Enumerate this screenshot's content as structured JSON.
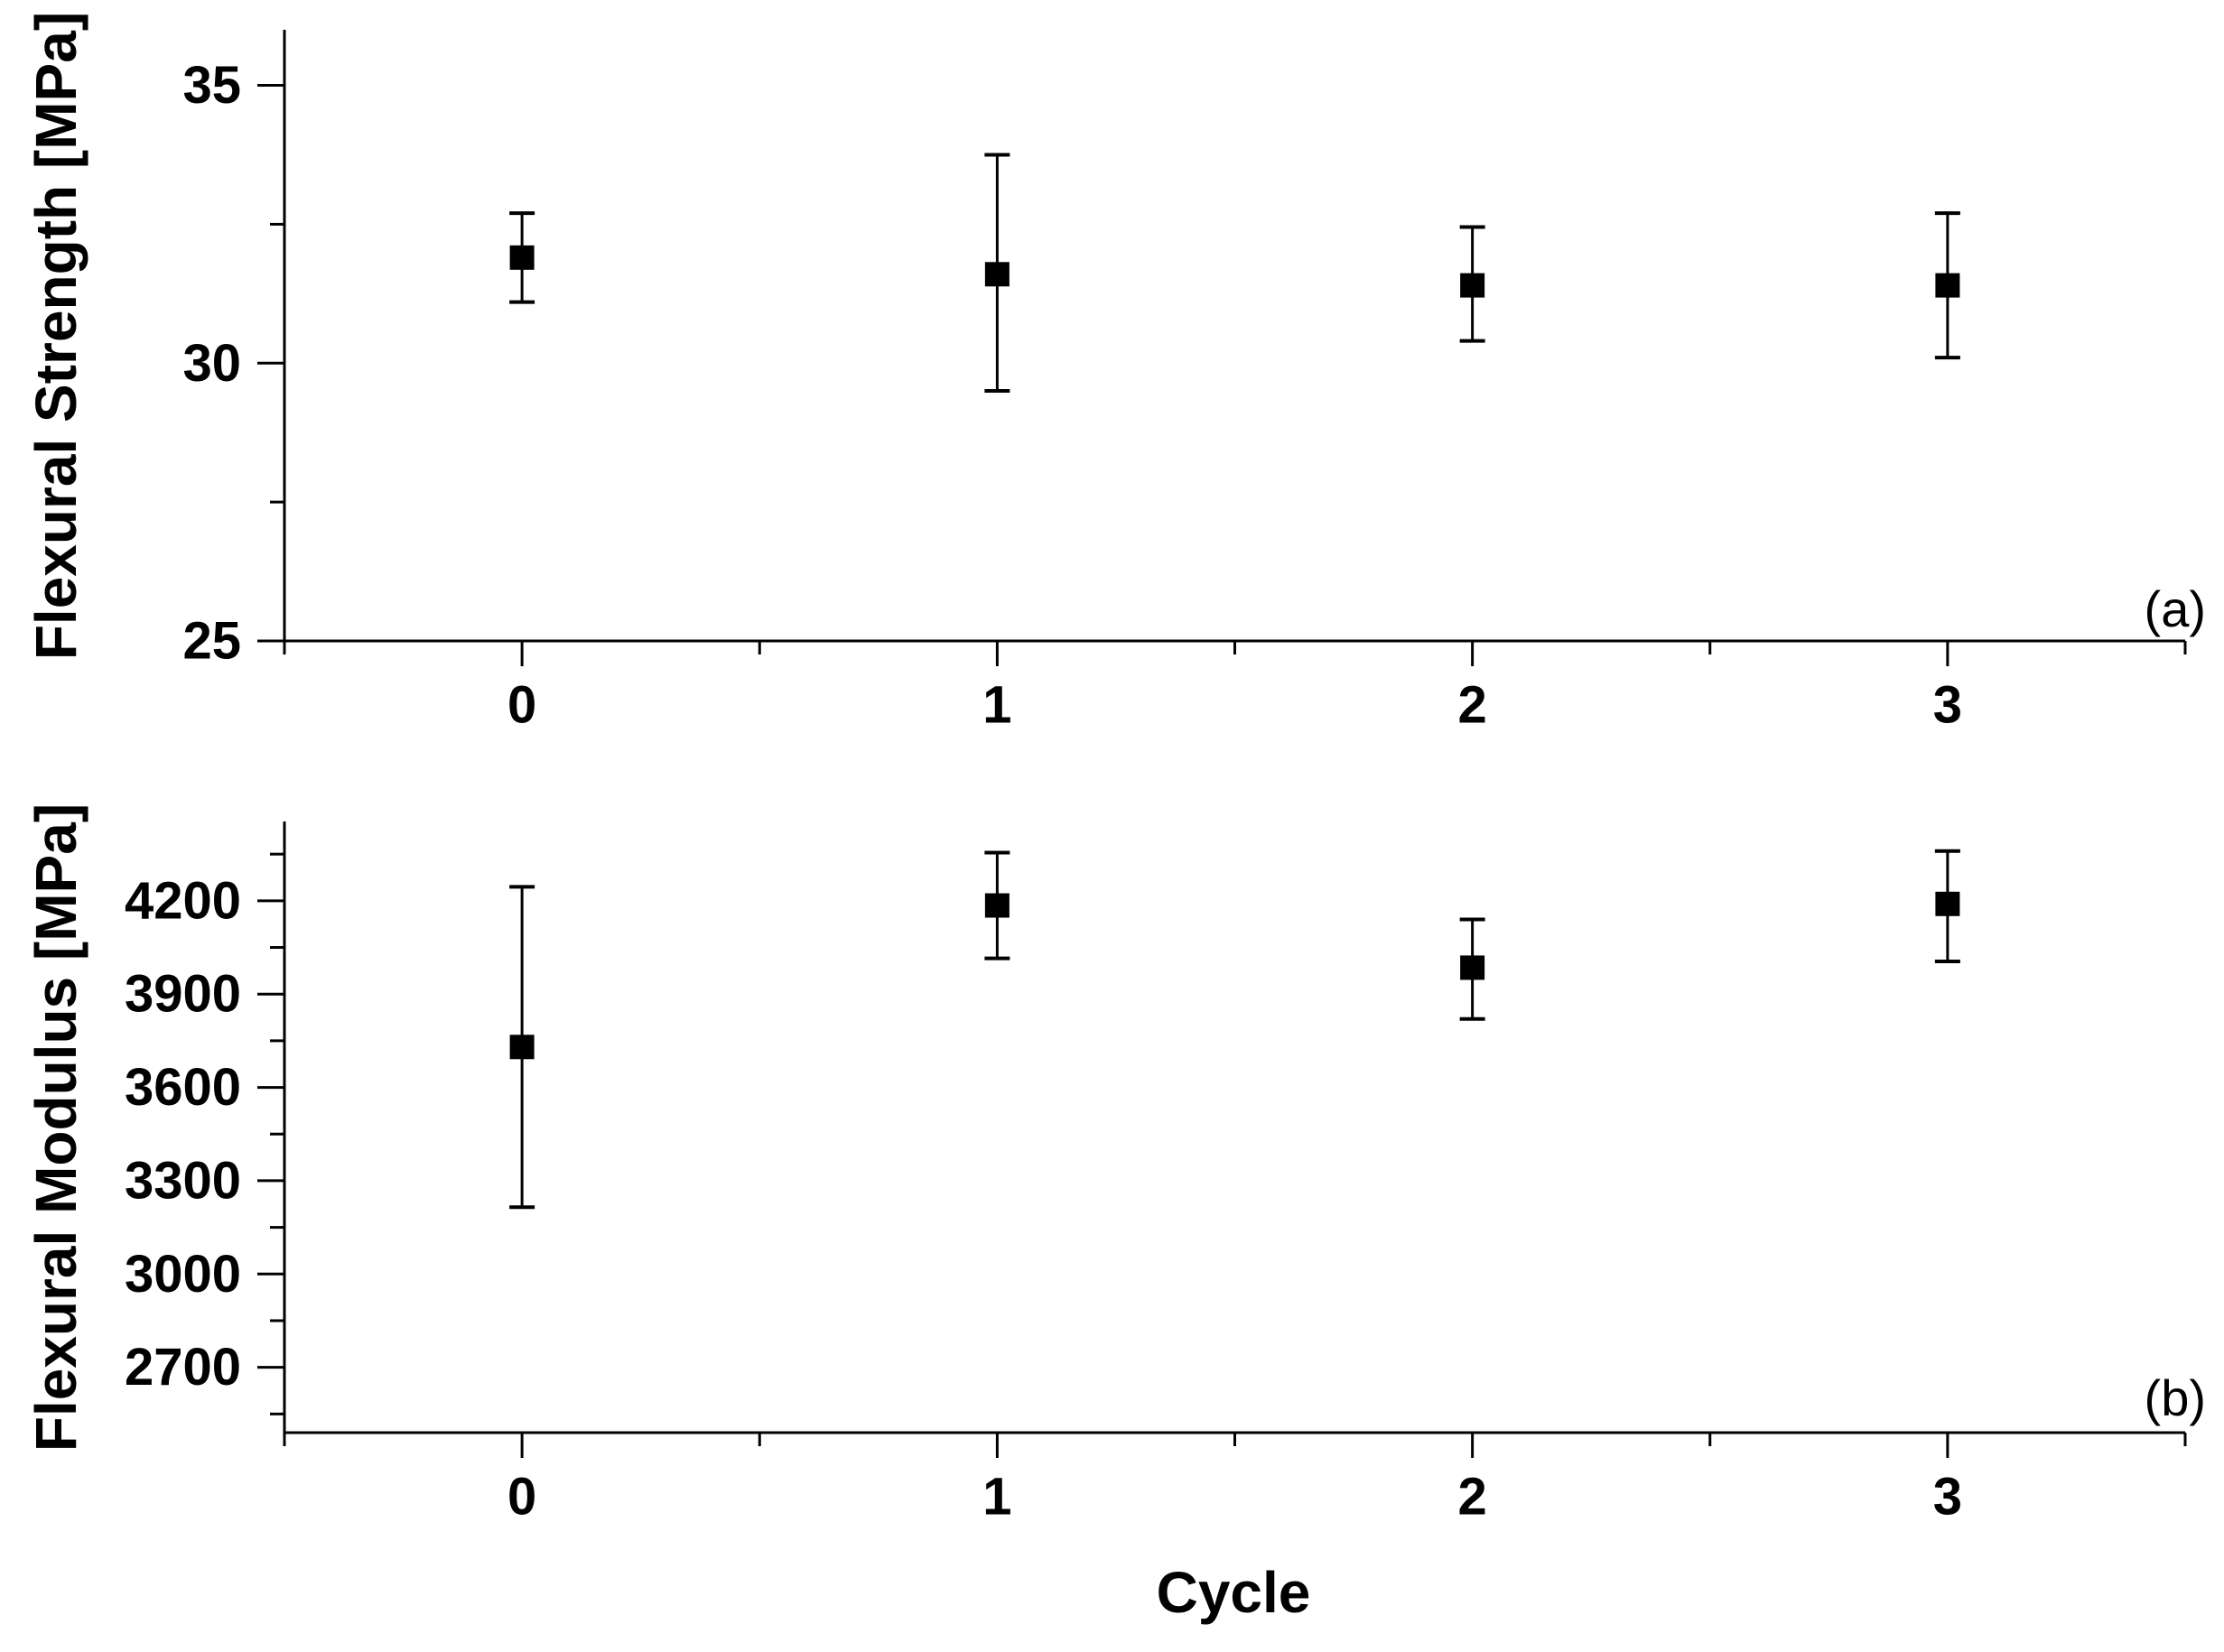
{
  "figure": {
    "background": "#ffffff",
    "foreground": "#000000"
  },
  "chart_data": [
    {
      "type": "scatter",
      "panel_label": "(a)",
      "xlabel": "",
      "ylabel": "Flexural Strength [MPa]",
      "x": [
        0,
        1,
        2,
        3
      ],
      "xtick_labels": [
        "0",
        "1",
        "2",
        "3"
      ],
      "series": [
        {
          "name": "Flexural Strength",
          "values": [
            31.9,
            31.6,
            31.4,
            31.4
          ],
          "err_upper": [
            32.7,
            33.75,
            32.45,
            32.7
          ],
          "err_lower": [
            31.1,
            29.5,
            30.4,
            30.1
          ]
        }
      ],
      "marker": "filled-square",
      "color": "#000000",
      "xlim": [
        -0.5,
        3.5
      ],
      "ylim": [
        25,
        36
      ],
      "yticks_major": [
        25,
        30,
        35
      ],
      "yticks_minor": [
        27.5,
        32.5
      ],
      "xticks_major": [
        0,
        1,
        2,
        3
      ],
      "xticks_minor": [
        -0.5,
        0.5,
        1.5,
        2.5,
        3.5
      ],
      "grid": false,
      "legend": "none"
    },
    {
      "type": "scatter",
      "panel_label": "(b)",
      "xlabel": "Cycle",
      "ylabel": "Flexural Modulus [MPa]",
      "x": [
        0,
        1,
        2,
        3
      ],
      "xtick_labels": [
        "0",
        "1",
        "2",
        "3"
      ],
      "series": [
        {
          "name": "Flexural Modulus",
          "values": [
            3730,
            4185,
            3985,
            4190
          ],
          "err_upper": [
            4245,
            4355,
            4140,
            4360
          ],
          "err_lower": [
            3215,
            4015,
            3820,
            4005
          ]
        }
      ],
      "marker": "filled-square",
      "color": "#000000",
      "xlim": [
        -0.5,
        3.5
      ],
      "ylim": [
        2490,
        4455
      ],
      "yticks_major": [
        2700,
        3000,
        3300,
        3600,
        3900,
        4200
      ],
      "yticks_minor": [
        2550,
        2850,
        3150,
        3450,
        3750,
        4050,
        4350
      ],
      "xticks_major": [
        0,
        1,
        2,
        3
      ],
      "xticks_minor": [
        -0.5,
        0.5,
        1.5,
        2.5,
        3.5
      ],
      "grid": false,
      "legend": "none"
    }
  ]
}
